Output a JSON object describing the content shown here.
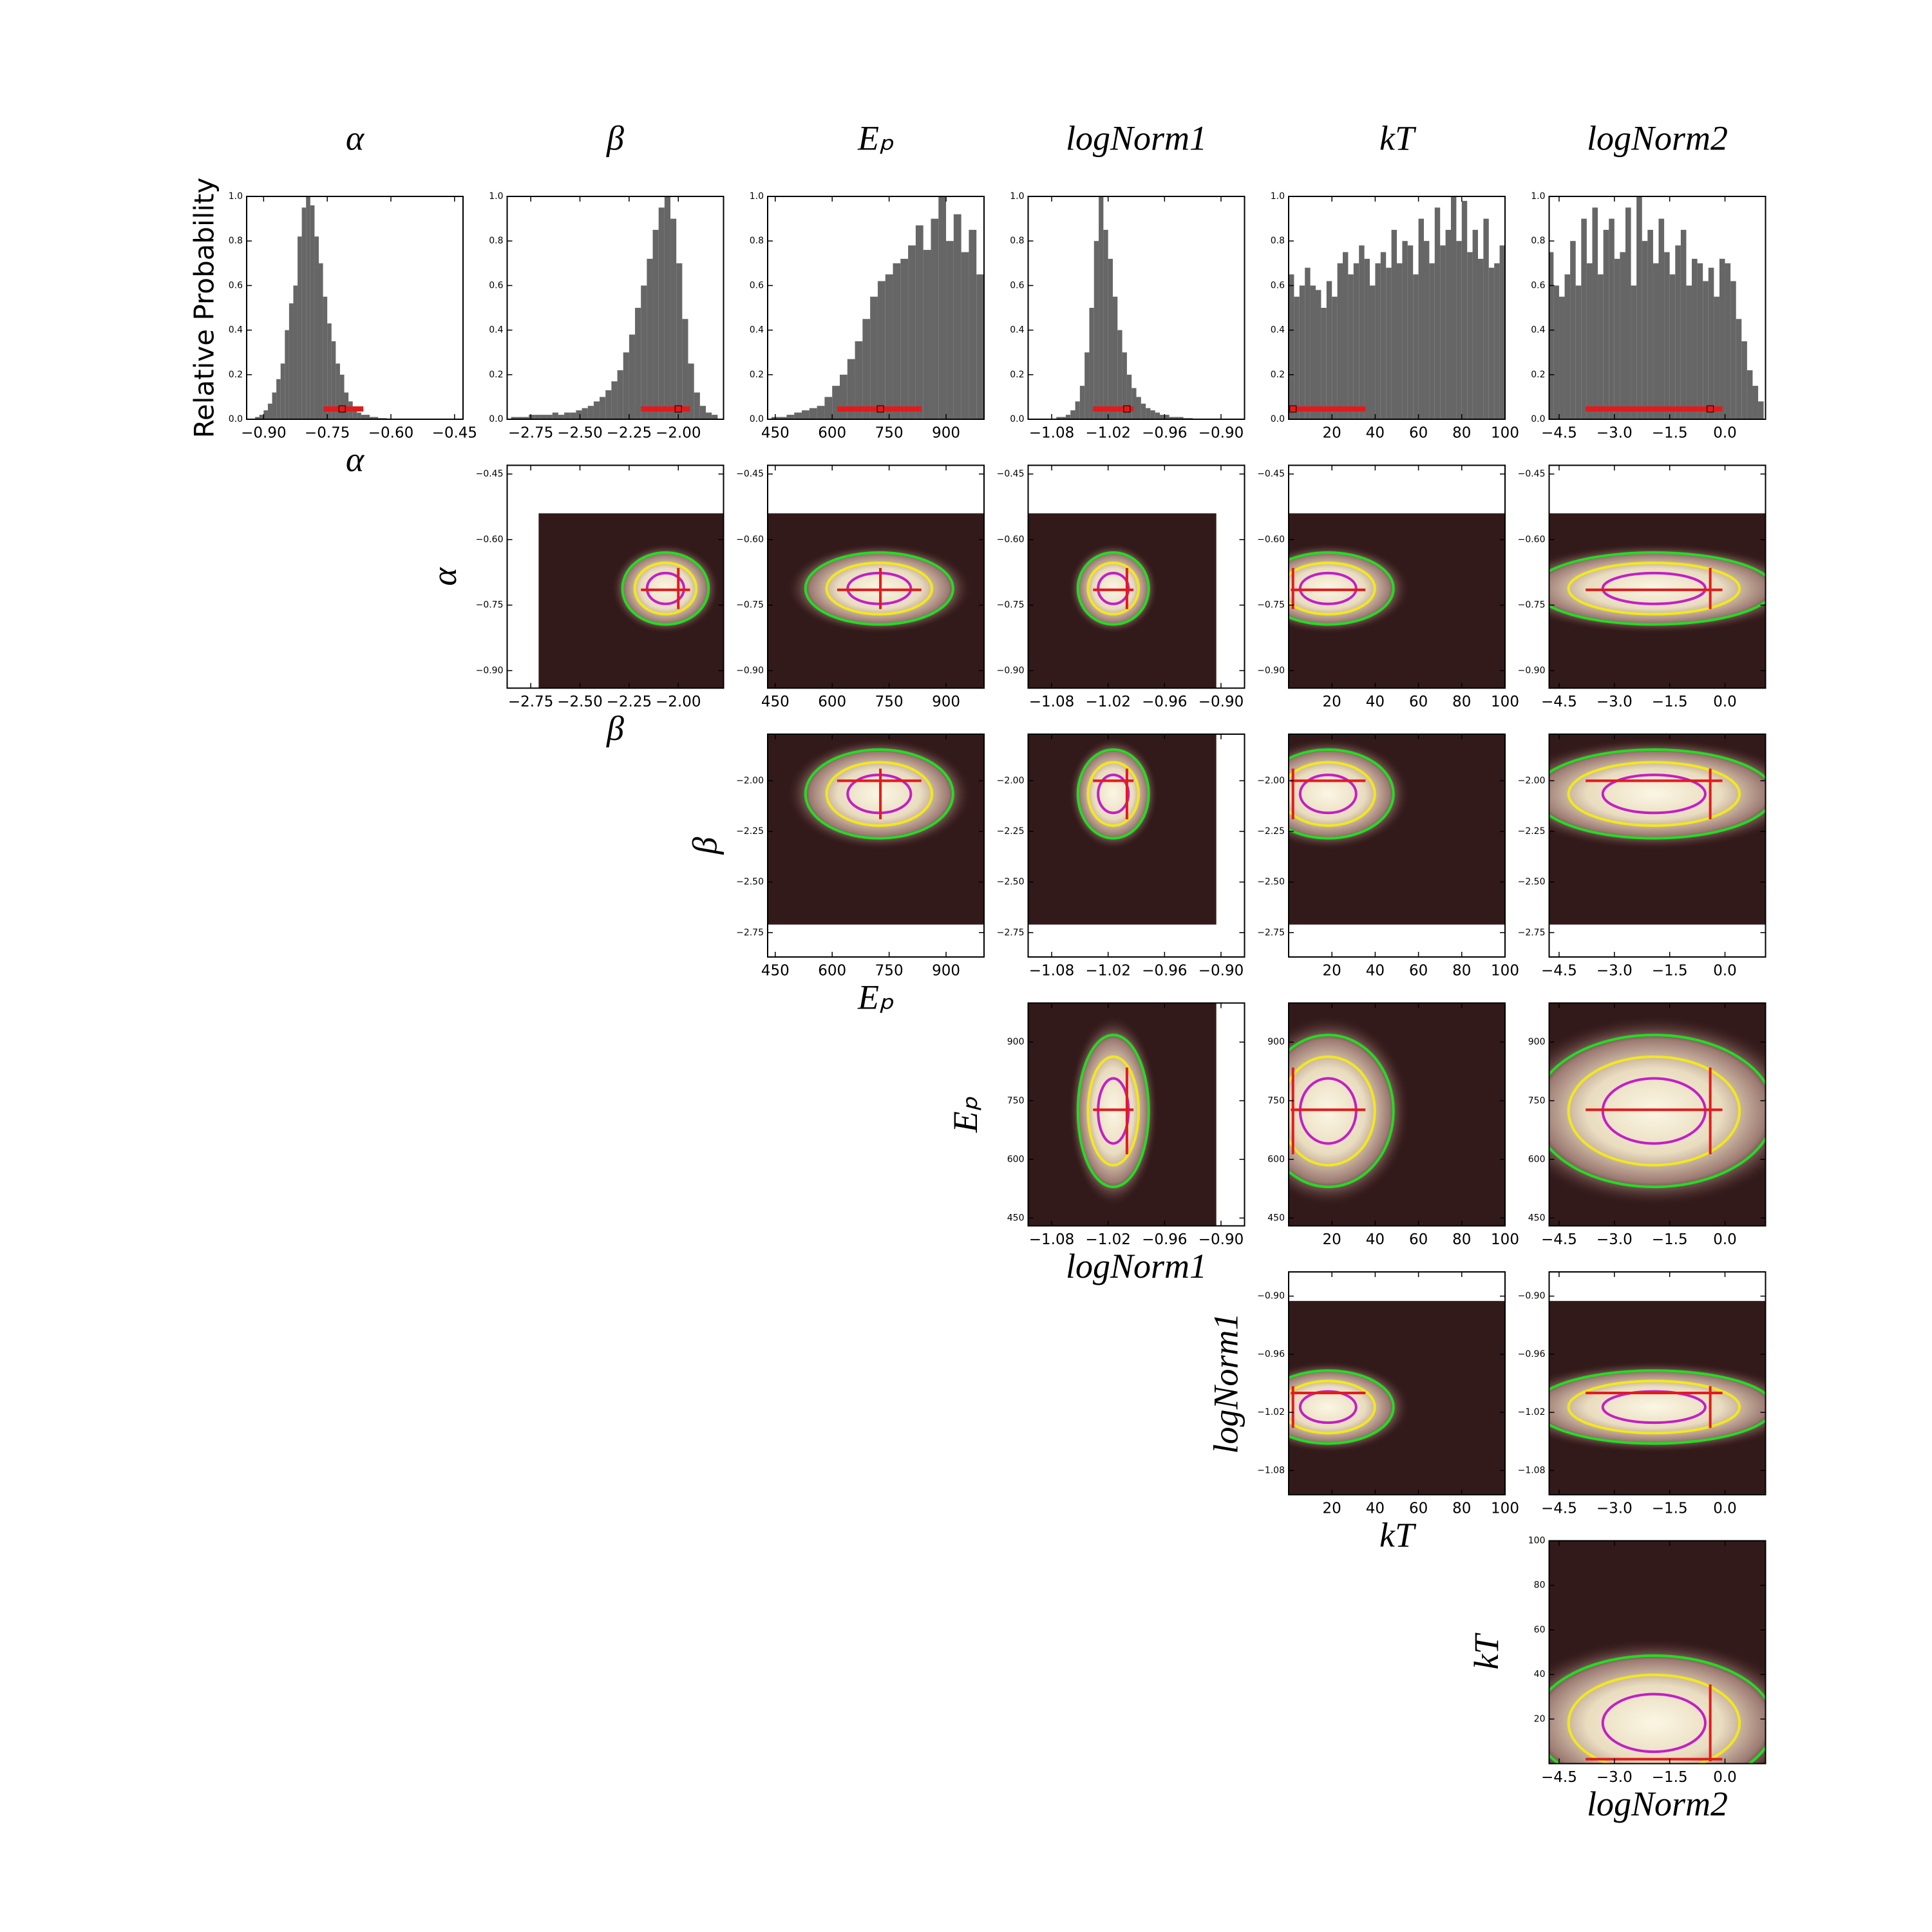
{
  "chart_data": [
    {
      "type": "histogram",
      "title": "α",
      "ylabel": "Relative Probability",
      "color": "#666666",
      "interval_color": "#e31a1c",
      "bins": [
        -0.92,
        -0.91,
        -0.9,
        -0.89,
        -0.88,
        -0.87,
        -0.86,
        -0.85,
        -0.84,
        -0.83,
        -0.82,
        -0.81,
        -0.8,
        -0.79,
        -0.78,
        -0.77,
        -0.76,
        -0.75,
        -0.74,
        -0.73,
        -0.72,
        -0.71,
        -0.7,
        -0.69,
        -0.68,
        -0.67,
        -0.66,
        -0.65,
        -0.64,
        -0.63,
        -0.62,
        -0.61,
        -0.6
      ],
      "values": [
        0.01,
        0.02,
        0.04,
        0.07,
        0.12,
        0.18,
        0.25,
        0.4,
        0.52,
        0.6,
        0.82,
        0.95,
        1.0,
        0.96,
        0.82,
        0.7,
        0.55,
        0.43,
        0.35,
        0.25,
        0.2,
        0.12,
        0.08,
        0.05,
        0.03,
        0.02,
        0.02,
        0.01,
        0.01,
        0.005,
        0.005,
        0.003
      ],
      "xlim": [
        -0.94,
        -0.43
      ],
      "xticks": [
        {
          "value": -0.9,
          "label": "−0.90"
        },
        {
          "value": -0.75,
          "label": "−0.75"
        },
        {
          "value": -0.6,
          "label": "−0.60"
        },
        {
          "value": -0.45,
          "label": "−0.45"
        }
      ],
      "ylim": [
        0,
        1
      ],
      "yticks": [
        {
          "value": 0,
          "label": "0.0"
        },
        {
          "value": 0.2,
          "label": "0.2"
        },
        {
          "value": 0.4,
          "label": "0.4"
        },
        {
          "value": 0.6,
          "label": "0.6"
        },
        {
          "value": 0.8,
          "label": "0.8"
        },
        {
          "value": 1,
          "label": "1.0"
        }
      ],
      "best": -0.715,
      "interval": [
        -0.759,
        -0.665
      ],
      "range": [
        -0.94,
        -0.54
      ]
    },
    {
      "type": "histogram",
      "title": "β",
      "color": "#666666",
      "interval_color": "#e31a1c",
      "bins": [
        -2.85,
        -2.82,
        -2.79,
        -2.76,
        -2.73,
        -2.7,
        -2.67,
        -2.64,
        -2.61,
        -2.58,
        -2.55,
        -2.52,
        -2.49,
        -2.46,
        -2.43,
        -2.4,
        -2.37,
        -2.34,
        -2.31,
        -2.28,
        -2.25,
        -2.22,
        -2.19,
        -2.16,
        -2.13,
        -2.1,
        -2.07,
        -2.04,
        -2.01,
        -1.98,
        -1.95,
        -1.92,
        -1.89,
        -1.86,
        -1.83,
        -1.8
      ],
      "values": [
        0.01,
        0.01,
        0.01,
        0.02,
        0.02,
        0.02,
        0.02,
        0.03,
        0.02,
        0.03,
        0.03,
        0.04,
        0.05,
        0.06,
        0.08,
        0.1,
        0.13,
        0.17,
        0.22,
        0.3,
        0.38,
        0.5,
        0.6,
        0.72,
        0.85,
        0.95,
        1.0,
        0.9,
        0.7,
        0.45,
        0.25,
        0.12,
        0.06,
        0.03,
        0.02
      ],
      "xlim": [
        -2.87,
        -1.77
      ],
      "xticks": [
        {
          "value": -2.75,
          "label": "−2.75"
        },
        {
          "value": -2.5,
          "label": "−2.50"
        },
        {
          "value": -2.25,
          "label": "−2.25"
        },
        {
          "value": -2,
          "label": "−2.00"
        }
      ],
      "ylim": [
        0,
        1
      ],
      "yticks": [
        {
          "value": 0,
          "label": "0.0"
        },
        {
          "value": 0.2,
          "label": "0.2"
        },
        {
          "value": 0.4,
          "label": "0.4"
        },
        {
          "value": 0.6,
          "label": "0.6"
        },
        {
          "value": 0.8,
          "label": "0.8"
        },
        {
          "value": 1,
          "label": "1.0"
        }
      ],
      "best": -2.0,
      "interval": [
        -2.19,
        -1.94
      ],
      "range": [
        -2.71,
        -1.77
      ]
    },
    {
      "type": "histogram",
      "title": "Eₚ",
      "color": "#666666",
      "interval_color": "#e31a1c",
      "bins": [
        440,
        460,
        480,
        500,
        520,
        540,
        560,
        580,
        600,
        620,
        640,
        660,
        680,
        700,
        720,
        740,
        760,
        780,
        800,
        820,
        840,
        860,
        880,
        900,
        920,
        940,
        960,
        980,
        1000
      ],
      "values": [
        0.01,
        0.01,
        0.02,
        0.03,
        0.04,
        0.05,
        0.06,
        0.1,
        0.15,
        0.2,
        0.27,
        0.35,
        0.45,
        0.55,
        0.62,
        0.65,
        0.7,
        0.72,
        0.78,
        0.87,
        0.76,
        0.9,
        1.0,
        0.8,
        0.92,
        0.75,
        0.85,
        0.65
      ],
      "xlim": [
        430,
        1000
      ],
      "xticks": [
        450,
        600,
        750,
        900
      ],
      "ylim": [
        0,
        1
      ],
      "yticks": [
        {
          "value": 0,
          "label": "0.0"
        },
        {
          "value": 0.2,
          "label": "0.2"
        },
        {
          "value": 0.4,
          "label": "0.4"
        },
        {
          "value": 0.6,
          "label": "0.6"
        },
        {
          "value": 0.8,
          "label": "0.8"
        },
        {
          "value": 1,
          "label": "1.0"
        }
      ],
      "best": 727,
      "interval": [
        613,
        835
      ],
      "range": [
        430,
        1000
      ]
    },
    {
      "type": "histogram",
      "title": "logNorm1",
      "color": "#666666",
      "interval_color": "#e31a1c",
      "bins": [
        -1.1,
        -1.095,
        -1.09,
        -1.085,
        -1.08,
        -1.075,
        -1.07,
        -1.065,
        -1.06,
        -1.055,
        -1.05,
        -1.045,
        -1.04,
        -1.035,
        -1.03,
        -1.025,
        -1.02,
        -1.015,
        -1.01,
        -1.005,
        -1.0,
        -0.995,
        -0.99,
        -0.985,
        -0.98,
        -0.975,
        -0.97,
        -0.965,
        -0.96,
        -0.955,
        -0.95,
        -0.945,
        -0.94,
        -0.935,
        -0.93,
        -0.925,
        -0.92,
        -0.915,
        -0.91,
        -0.905,
        -0.9
      ],
      "values": [
        0,
        0,
        0,
        0,
        0,
        0.01,
        0.01,
        0.02,
        0.04,
        0.08,
        0.15,
        0.3,
        0.5,
        0.8,
        1.0,
        0.85,
        0.72,
        0.55,
        0.4,
        0.3,
        0.2,
        0.14,
        0.1,
        0.07,
        0.05,
        0.04,
        0.03,
        0.02,
        0.02,
        0.01,
        0.01,
        0.01,
        0.005,
        0.005,
        0,
        0,
        0,
        0,
        0,
        0
      ],
      "xlim": [
        -1.105,
        -0.875
      ],
      "xticks": [
        {
          "value": -1.08,
          "label": "−1.08"
        },
        {
          "value": -1.02,
          "label": "−1.02"
        },
        {
          "value": -0.96,
          "label": "−0.96"
        },
        {
          "value": -0.9,
          "label": "−0.90"
        }
      ],
      "ylim": [
        0,
        1
      ],
      "yticks": [
        {
          "value": 0,
          "label": "0.0"
        },
        {
          "value": 0.2,
          "label": "0.2"
        },
        {
          "value": 0.4,
          "label": "0.4"
        },
        {
          "value": 0.6,
          "label": "0.6"
        },
        {
          "value": 0.8,
          "label": "0.8"
        },
        {
          "value": 1,
          "label": "1.0"
        }
      ],
      "best": -1.0,
      "interval": [
        -1.036,
        -0.993
      ],
      "range": [
        -1.105,
        -0.905
      ]
    },
    {
      "type": "histogram",
      "title": "kT",
      "color": "#666666",
      "interval_color": "#e31a1c",
      "bins": [
        0,
        2.5,
        5,
        7.5,
        10,
        12.5,
        15,
        17.5,
        20,
        22.5,
        25,
        27.5,
        30,
        32.5,
        35,
        37.5,
        40,
        42.5,
        45,
        47.5,
        50,
        52.5,
        55,
        57.5,
        60,
        62.5,
        65,
        67.5,
        70,
        72.5,
        75,
        77.5,
        80,
        82.5,
        85,
        87.5,
        90,
        92.5,
        95,
        97.5,
        100
      ],
      "values": [
        0.65,
        0.55,
        0.6,
        0.68,
        0.6,
        0.58,
        0.5,
        0.62,
        0.55,
        0.7,
        0.75,
        0.65,
        0.7,
        0.78,
        0.72,
        0.6,
        0.7,
        0.75,
        0.68,
        0.85,
        0.7,
        0.8,
        0.78,
        0.65,
        0.9,
        0.8,
        0.7,
        0.95,
        0.78,
        0.85,
        1.0,
        0.8,
        0.98,
        0.75,
        0.85,
        0.72,
        0.9,
        0.68,
        0.7,
        0.78
      ],
      "xlim": [
        0,
        100
      ],
      "xticks": [
        20,
        40,
        60,
        80,
        100
      ],
      "ylim": [
        0,
        1
      ],
      "yticks": [
        {
          "value": 0,
          "label": "0.0"
        },
        {
          "value": 0.2,
          "label": "0.2"
        },
        {
          "value": 0.4,
          "label": "0.4"
        },
        {
          "value": 0.6,
          "label": "0.6"
        },
        {
          "value": 0.8,
          "label": "0.8"
        },
        {
          "value": 1,
          "label": "1.0"
        }
      ],
      "best": 2,
      "interval": [
        1,
        35.5
      ],
      "range": [
        0,
        100
      ]
    },
    {
      "type": "histogram",
      "title": "logNorm2",
      "color": "#666666",
      "interval_color": "#e31a1c",
      "bins": [
        -4.8,
        -4.65,
        -4.5,
        -4.35,
        -4.2,
        -4.05,
        -3.9,
        -3.75,
        -3.6,
        -3.45,
        -3.3,
        -3.15,
        -3.0,
        -2.85,
        -2.7,
        -2.55,
        -2.4,
        -2.25,
        -2.1,
        -1.95,
        -1.8,
        -1.65,
        -1.5,
        -1.35,
        -1.2,
        -1.05,
        -0.9,
        -0.75,
        -0.6,
        -0.45,
        -0.3,
        -0.15,
        0,
        0.15,
        0.3,
        0.45,
        0.6,
        0.75,
        0.9,
        1.05
      ],
      "values": [
        0.75,
        0.6,
        0.55,
        0.65,
        0.8,
        0.6,
        0.9,
        0.7,
        0.95,
        0.65,
        0.85,
        0.9,
        0.72,
        0.75,
        0.95,
        0.6,
        1.0,
        0.8,
        0.85,
        0.7,
        0.9,
        0.75,
        0.65,
        0.78,
        0.85,
        0.6,
        0.72,
        0.7,
        0.62,
        0.68,
        0.55,
        0.72,
        0.7,
        0.62,
        0.45,
        0.35,
        0.22,
        0.15,
        0.08
      ],
      "xlim": [
        -4.77,
        1.1
      ],
      "xticks": [
        {
          "value": -4.5,
          "label": "−4.5"
        },
        {
          "value": -3,
          "label": "−3.0"
        },
        {
          "value": -1.5,
          "label": "−1.5"
        },
        {
          "value": 0,
          "label": "0.0"
        }
      ],
      "ylim": [
        0,
        1
      ],
      "yticks": [
        {
          "value": 0,
          "label": "0.0"
        },
        {
          "value": 0.2,
          "label": "0.2"
        },
        {
          "value": 0.4,
          "label": "0.4"
        },
        {
          "value": 0.6,
          "label": "0.6"
        },
        {
          "value": 0.8,
          "label": "0.8"
        },
        {
          "value": 1,
          "label": "1.0"
        }
      ],
      "best": -0.4,
      "interval": [
        -3.78,
        -0.07
      ],
      "range": [
        -4.77,
        1.1
      ]
    }
  ]
}
